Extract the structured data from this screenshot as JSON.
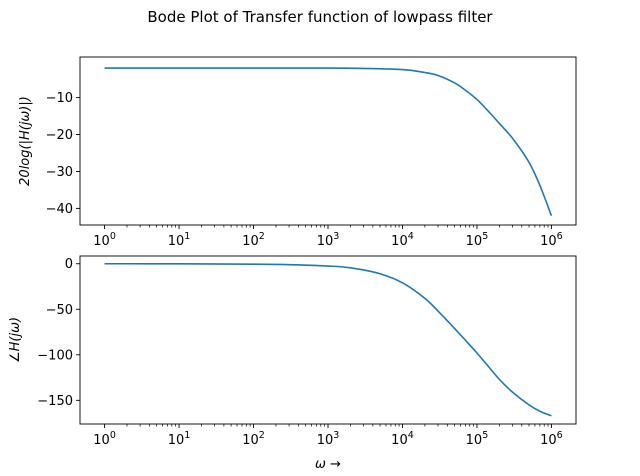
{
  "chart_data": [
    {
      "type": "line",
      "title": "Bode Plot of Transfer function of lowpass filter",
      "xlabel": "",
      "ylabel": "20log(|H(jω)|)",
      "xscale": "log",
      "xlim": [
        1,
        1000000
      ],
      "ylim": [
        -44.5,
        1.0
      ],
      "xticks": [
        {
          "base": "10",
          "exp": "0"
        },
        {
          "base": "10",
          "exp": "1"
        },
        {
          "base": "10",
          "exp": "2"
        },
        {
          "base": "10",
          "exp": "3"
        },
        {
          "base": "10",
          "exp": "4"
        },
        {
          "base": "10",
          "exp": "5"
        },
        {
          "base": "10",
          "exp": "6"
        }
      ],
      "yticks": [
        {
          "value": -10,
          "label": "−10"
        },
        {
          "value": -20,
          "label": "−20"
        },
        {
          "value": -30,
          "label": "−30"
        },
        {
          "value": -40,
          "label": "−40"
        }
      ],
      "series": [
        {
          "color": "#1f77b4",
          "x": [
            1,
            10,
            100,
            1000,
            3000,
            10000,
            20000,
            30000,
            50000,
            70000,
            100000,
            150000,
            200000,
            300000,
            500000,
            700000,
            1000000
          ],
          "y": [
            -2.0,
            -2.0,
            -2.0,
            -2.0,
            -2.1,
            -2.4,
            -3.2,
            -4.0,
            -6.0,
            -8.0,
            -10.5,
            -14.2,
            -17.0,
            -21.0,
            -27.5,
            -33.8,
            -42.0
          ]
        }
      ],
      "grid": false
    },
    {
      "type": "line",
      "xlabel": "ω →",
      "ylabel": "∠H(jω)",
      "xscale": "log",
      "xlim": [
        1,
        1000000
      ],
      "ylim": [
        -176,
        8.5
      ],
      "xticks": [
        {
          "base": "10",
          "exp": "0"
        },
        {
          "base": "10",
          "exp": "1"
        },
        {
          "base": "10",
          "exp": "2"
        },
        {
          "base": "10",
          "exp": "3"
        },
        {
          "base": "10",
          "exp": "4"
        },
        {
          "base": "10",
          "exp": "5"
        },
        {
          "base": "10",
          "exp": "6"
        }
      ],
      "yticks": [
        {
          "value": 0,
          "label": "0"
        },
        {
          "value": -50,
          "label": "−50"
        },
        {
          "value": -100,
          "label": "−100"
        },
        {
          "value": -150,
          "label": "−150"
        }
      ],
      "series": [
        {
          "color": "#1f77b4",
          "x": [
            1,
            10,
            100,
            300,
            1000,
            2000,
            5000,
            10000,
            20000,
            30000,
            50000,
            70000,
            100000,
            150000,
            200000,
            300000,
            500000,
            700000,
            1000000
          ],
          "y": [
            0,
            -0.1,
            -0.5,
            -1.0,
            -2.5,
            -4.5,
            -11,
            -21,
            -38,
            -52,
            -71,
            -84,
            -98,
            -115,
            -127,
            -141,
            -155,
            -162,
            -167
          ]
        }
      ],
      "grid": false
    }
  ]
}
